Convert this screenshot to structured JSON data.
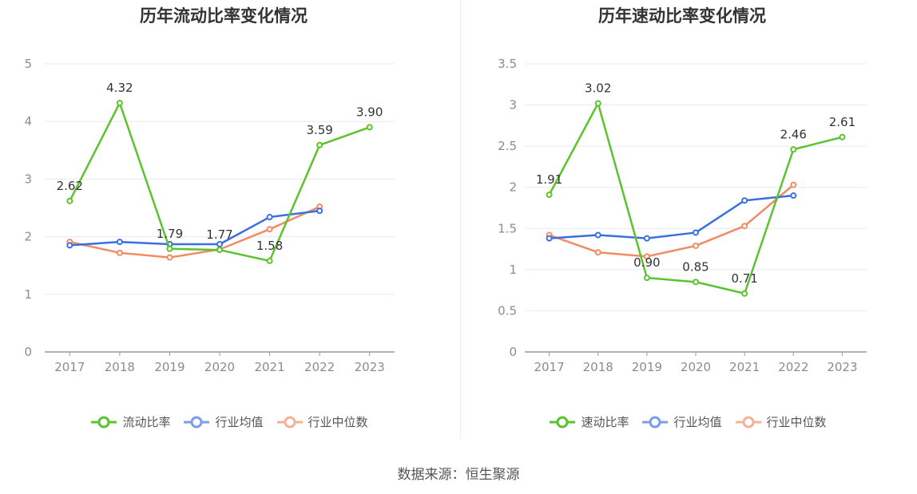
{
  "source": "数据来源：恒生聚源",
  "colors": {
    "main": "#5ac32e",
    "avg": "#3b6fdc",
    "median": "#f28b63",
    "legend_avg": "#7a9ee8",
    "legend_median": "#f5b09a",
    "grid": "#e6e9f2",
    "axis": "#999999"
  },
  "chart_data": [
    {
      "type": "line",
      "title": "历年流动比率变化情况",
      "categories": [
        "2017",
        "2018",
        "2019",
        "2020",
        "2021",
        "2022",
        "2023"
      ],
      "ylim": [
        0,
        5
      ],
      "yticks": [
        "0",
        "1",
        "2",
        "3",
        "4",
        "5"
      ],
      "grid": true,
      "legend_position": "bottom",
      "series": [
        {
          "name": "流动比率",
          "values": [
            2.62,
            4.32,
            1.79,
            1.77,
            1.58,
            3.59,
            3.9
          ],
          "labels": [
            "2.62",
            "4.32",
            "1.79",
            "1.77",
            "1.58",
            "3.59",
            "3.90"
          ]
        },
        {
          "name": "行业均值",
          "values": [
            1.85,
            1.91,
            1.87,
            1.87,
            2.34,
            2.45,
            null
          ]
        },
        {
          "name": "行业中位数",
          "values": [
            1.91,
            1.72,
            1.64,
            1.78,
            2.13,
            2.52,
            null
          ]
        }
      ]
    },
    {
      "type": "line",
      "title": "历年速动比率变化情况",
      "categories": [
        "2017",
        "2018",
        "2019",
        "2020",
        "2021",
        "2022",
        "2023"
      ],
      "ylim": [
        0,
        3.5
      ],
      "yticks": [
        "0",
        "0.5",
        "1",
        "1.5",
        "2",
        "2.5",
        "3",
        "3.5"
      ],
      "grid": true,
      "legend_position": "bottom",
      "series": [
        {
          "name": "速动比率",
          "values": [
            1.91,
            3.02,
            0.9,
            0.85,
            0.71,
            2.46,
            2.61
          ],
          "labels": [
            "1.91",
            "3.02",
            "0.90",
            "0.85",
            "0.71",
            "2.46",
            "2.61"
          ]
        },
        {
          "name": "行业均值",
          "values": [
            1.38,
            1.42,
            1.38,
            1.45,
            1.84,
            1.9,
            null
          ]
        },
        {
          "name": "行业中位数",
          "values": [
            1.42,
            1.21,
            1.16,
            1.29,
            1.53,
            2.03,
            null
          ]
        }
      ]
    }
  ]
}
